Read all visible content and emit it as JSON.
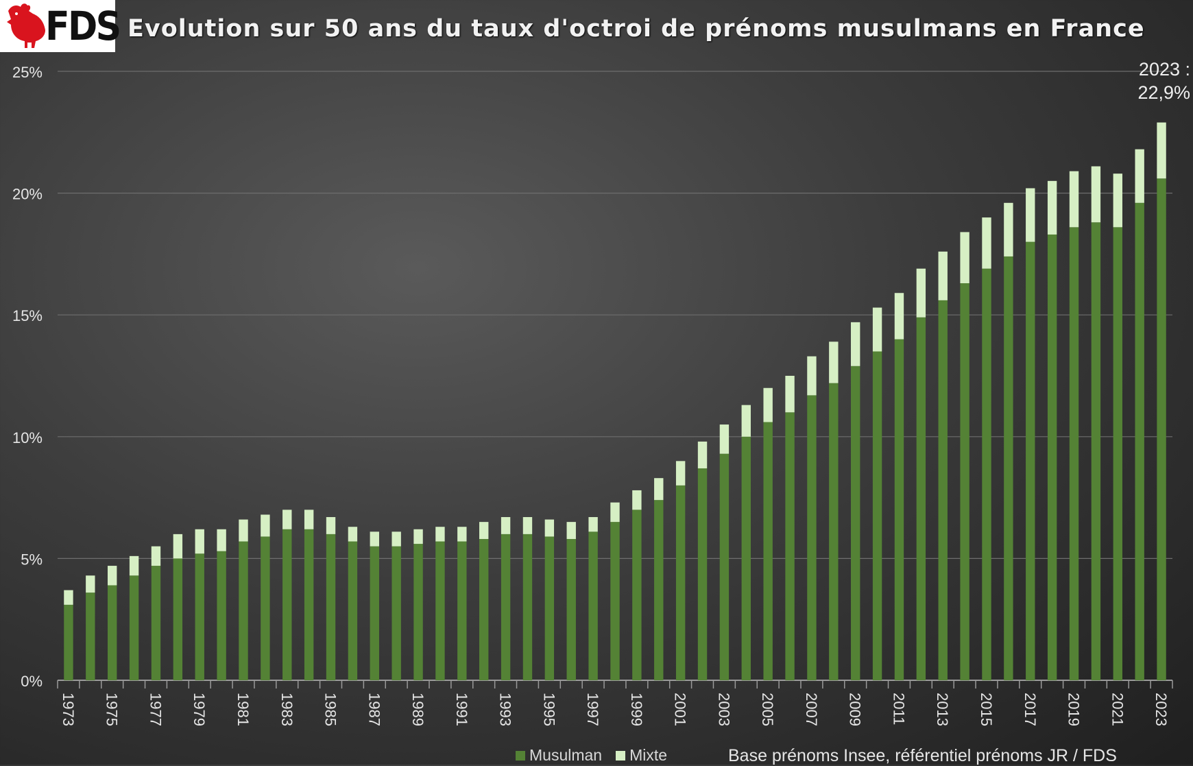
{
  "logo": {
    "text": "FDS",
    "icon": "rooster-icon"
  },
  "title": "Evolution sur 50 ans du taux d'octroi de prénoms musulmans en France",
  "annotation": {
    "line1": "2023 :",
    "line2": "22,9%"
  },
  "legend": {
    "musulman": "Musulman",
    "mixte": "Mixte"
  },
  "source": "Base prénoms Insee, référentiel prénoms JR / FDS",
  "colors": {
    "musulman": "#548235",
    "mixte": "#d6efc4",
    "grid": "#6e6e6e",
    "text": "#e6e6e6"
  },
  "chart_data": {
    "type": "bar",
    "stacked": true,
    "title": "Evolution sur 50 ans du taux d'octroi de prénoms musulmans en France",
    "xlabel": "",
    "ylabel": "",
    "ylim": [
      0,
      25
    ],
    "yticks": [
      "0%",
      "5%",
      "10%",
      "15%",
      "20%",
      "25%"
    ],
    "grid": true,
    "legend_position": "bottom",
    "categories": [
      "1973",
      "1974",
      "1975",
      "1976",
      "1977",
      "1978",
      "1979",
      "1980",
      "1981",
      "1982",
      "1983",
      "1984",
      "1985",
      "1986",
      "1987",
      "1988",
      "1989",
      "1990",
      "1991",
      "1992",
      "1993",
      "1994",
      "1995",
      "1996",
      "1997",
      "1998",
      "1999",
      "2000",
      "2001",
      "2002",
      "2003",
      "2004",
      "2005",
      "2006",
      "2007",
      "2008",
      "2009",
      "2010",
      "2011",
      "2012",
      "2013",
      "2014",
      "2015",
      "2016",
      "2017",
      "2018",
      "2019",
      "2020",
      "2021",
      "2022",
      "2023"
    ],
    "tick_labels": [
      "1973",
      "1975",
      "1977",
      "1979",
      "1981",
      "1983",
      "1985",
      "1987",
      "1989",
      "1991",
      "1993",
      "1995",
      "1997",
      "1999",
      "2001",
      "2003",
      "2005",
      "2007",
      "2009",
      "2011",
      "2013",
      "2015",
      "2017",
      "2019",
      "2021",
      "2023"
    ],
    "series": [
      {
        "name": "Musulman",
        "values": [
          3.1,
          3.6,
          3.9,
          4.3,
          4.7,
          5.0,
          5.2,
          5.3,
          5.7,
          5.9,
          6.2,
          6.2,
          6.0,
          5.7,
          5.5,
          5.5,
          5.6,
          5.7,
          5.7,
          5.8,
          6.0,
          6.0,
          5.9,
          5.8,
          6.1,
          6.5,
          7.0,
          7.4,
          8.0,
          8.7,
          9.3,
          10.0,
          10.6,
          11.0,
          11.7,
          12.2,
          12.9,
          13.5,
          14.0,
          14.9,
          15.6,
          16.3,
          16.9,
          17.4,
          18.0,
          18.3,
          18.6,
          18.8,
          18.6,
          19.6,
          20.6
        ]
      },
      {
        "name": "Mixte",
        "values": [
          0.6,
          0.7,
          0.8,
          0.8,
          0.8,
          1.0,
          1.0,
          0.9,
          0.9,
          0.9,
          0.8,
          0.8,
          0.7,
          0.6,
          0.6,
          0.6,
          0.6,
          0.6,
          0.6,
          0.7,
          0.7,
          0.7,
          0.7,
          0.7,
          0.6,
          0.8,
          0.8,
          0.9,
          1.0,
          1.1,
          1.2,
          1.3,
          1.4,
          1.5,
          1.6,
          1.7,
          1.8,
          1.8,
          1.9,
          2.0,
          2.0,
          2.1,
          2.1,
          2.2,
          2.2,
          2.2,
          2.3,
          2.3,
          2.2,
          2.2,
          2.3
        ]
      }
    ]
  }
}
